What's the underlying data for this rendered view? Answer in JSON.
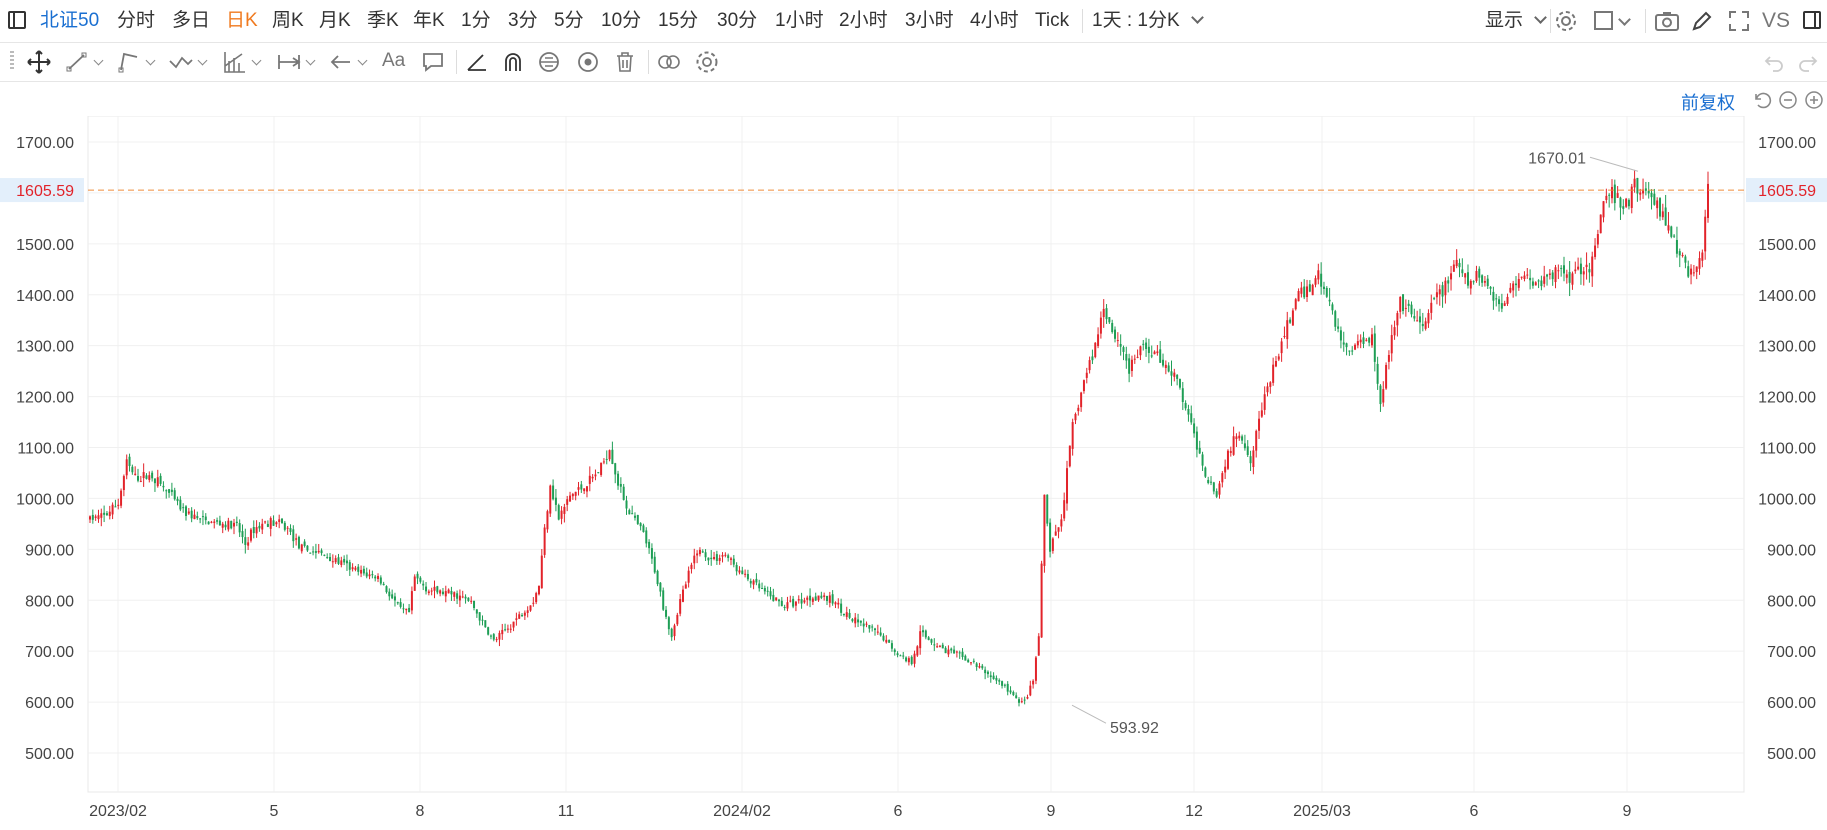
{
  "topbar": {
    "symbol": "北证50",
    "periods": [
      "分时",
      "多日",
      "日K",
      "周K",
      "月K",
      "季K",
      "年K",
      "1分",
      "3分",
      "5分",
      "10分",
      "15分",
      "30分",
      "1小时",
      "2小时",
      "3小时",
      "4小时",
      "Tick"
    ],
    "active_period": "日K",
    "range_select": "1天 : 1分K",
    "display_label": "显示",
    "vs_label": "VS"
  },
  "toolbar": {
    "text_tool_label": "Aa"
  },
  "subbar": {
    "adjust_label": "前复权"
  },
  "colors": {
    "up": "#e2232a",
    "down": "#1e9e55",
    "price_line": "#f08c3a",
    "accent": "#1a6fd1"
  },
  "chart_data": {
    "type": "candlestick",
    "y_ticks": [
      "1700.00",
      "1600.00",
      "1500.00",
      "1400.00",
      "1300.00",
      "1200.00",
      "1100.00",
      "1000.00",
      "900.00",
      "800.00",
      "700.00",
      "600.00",
      "500.00"
    ],
    "x_ticks": [
      "2023/02",
      "5",
      "8",
      "11",
      "2024/02",
      "6",
      "9",
      "12",
      "2025/03",
      "6",
      "9"
    ],
    "ylim": [
      450,
      1750
    ],
    "current_price": "1605.59",
    "max_label": "1670.01",
    "min_label": "593.92",
    "trend": [
      [
        0,
        960
      ],
      [
        5,
        965
      ],
      [
        10,
        990
      ],
      [
        13,
        1070
      ],
      [
        16,
        1040
      ],
      [
        22,
        1045
      ],
      [
        27,
        1015
      ],
      [
        33,
        975
      ],
      [
        40,
        955
      ],
      [
        47,
        950
      ],
      [
        52,
        945
      ],
      [
        55,
        910
      ],
      [
        58,
        940
      ],
      [
        63,
        955
      ],
      [
        67,
        950
      ],
      [
        70,
        940
      ],
      [
        75,
        900
      ],
      [
        80,
        895
      ],
      [
        88,
        875
      ],
      [
        95,
        855
      ],
      [
        102,
        845
      ],
      [
        105,
        820
      ],
      [
        110,
        780
      ],
      [
        113,
        775
      ],
      [
        115,
        845
      ],
      [
        120,
        820
      ],
      [
        130,
        810
      ],
      [
        135,
        795
      ],
      [
        140,
        745
      ],
      [
        143,
        720
      ],
      [
        148,
        745
      ],
      [
        152,
        770
      ],
      [
        157,
        800
      ],
      [
        159,
        830
      ],
      [
        161,
        940
      ],
      [
        163,
        1030
      ],
      [
        166,
        960
      ],
      [
        170,
        1005
      ],
      [
        174,
        1020
      ],
      [
        178,
        1040
      ],
      [
        181,
        1060
      ],
      [
        184,
        1100
      ],
      [
        187,
        1030
      ],
      [
        190,
        985
      ],
      [
        193,
        955
      ],
      [
        196,
        930
      ],
      [
        200,
        860
      ],
      [
        203,
        790
      ],
      [
        206,
        730
      ],
      [
        209,
        800
      ],
      [
        212,
        850
      ],
      [
        215,
        900
      ],
      [
        220,
        880
      ],
      [
        225,
        890
      ],
      [
        230,
        855
      ],
      [
        240,
        810
      ],
      [
        246,
        790
      ],
      [
        252,
        800
      ],
      [
        258,
        810
      ],
      [
        264,
        795
      ],
      [
        270,
        760
      ],
      [
        276,
        745
      ],
      [
        281,
        725
      ],
      [
        287,
        690
      ],
      [
        291,
        680
      ],
      [
        294,
        735
      ],
      [
        298,
        720
      ],
      [
        302,
        705
      ],
      [
        308,
        690
      ],
      [
        313,
        675
      ],
      [
        318,
        655
      ],
      [
        324,
        630
      ],
      [
        328,
        605
      ],
      [
        331,
        600
      ],
      [
        334,
        640
      ],
      [
        336,
        730
      ],
      [
        338,
        1000
      ],
      [
        340,
        900
      ],
      [
        344,
        960
      ],
      [
        348,
        1140
      ],
      [
        352,
        1230
      ],
      [
        356,
        1300
      ],
      [
        359,
        1380
      ],
      [
        362,
        1330
      ],
      [
        366,
        1290
      ],
      [
        368,
        1250
      ],
      [
        372,
        1295
      ],
      [
        376,
        1290
      ],
      [
        380,
        1270
      ],
      [
        385,
        1230
      ],
      [
        390,
        1140
      ],
      [
        395,
        1050
      ],
      [
        399,
        1010
      ],
      [
        403,
        1090
      ],
      [
        407,
        1130
      ],
      [
        411,
        1080
      ],
      [
        415,
        1180
      ],
      [
        419,
        1250
      ],
      [
        423,
        1320
      ],
      [
        427,
        1390
      ],
      [
        431,
        1410
      ],
      [
        435,
        1440
      ],
      [
        439,
        1380
      ],
      [
        443,
        1310
      ],
      [
        446,
        1290
      ],
      [
        450,
        1310
      ],
      [
        454,
        1320
      ],
      [
        457,
        1190
      ],
      [
        460,
        1290
      ],
      [
        464,
        1380
      ],
      [
        468,
        1360
      ],
      [
        472,
        1330
      ],
      [
        476,
        1390
      ],
      [
        480,
        1420
      ],
      [
        484,
        1460
      ],
      [
        488,
        1420
      ],
      [
        492,
        1440
      ],
      [
        496,
        1410
      ],
      [
        500,
        1370
      ],
      [
        504,
        1430
      ],
      [
        508,
        1440
      ],
      [
        512,
        1420
      ],
      [
        516,
        1430
      ],
      [
        520,
        1450
      ],
      [
        524,
        1440
      ],
      [
        528,
        1455
      ],
      [
        532,
        1460
      ],
      [
        536,
        1580
      ],
      [
        539,
        1600
      ],
      [
        542,
        1575
      ],
      [
        545,
        1580
      ],
      [
        547,
        1620
      ],
      [
        549,
        1600
      ],
      [
        552,
        1600
      ],
      [
        556,
        1570
      ],
      [
        560,
        1520
      ],
      [
        563,
        1480
      ],
      [
        566,
        1445
      ],
      [
        569,
        1450
      ],
      [
        571,
        1490
      ],
      [
        573,
        1600
      ]
    ]
  }
}
